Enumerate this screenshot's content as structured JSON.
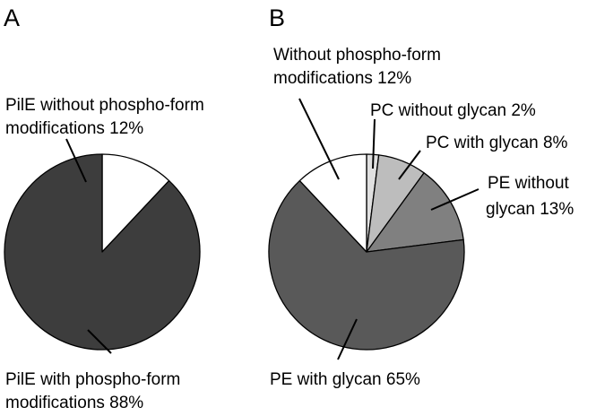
{
  "chart_data": [
    {
      "type": "pie",
      "panel_label": "A",
      "slices": [
        {
          "label_lines": [
            "PilE without phospho-form",
            "modifications 12%"
          ],
          "value": 12,
          "color": "#ffffff"
        },
        {
          "label_lines": [
            "PilE with phospho-form",
            "modifications 88%"
          ],
          "value": 88,
          "color": "#3d3d3d"
        }
      ]
    },
    {
      "type": "pie",
      "panel_label": "B",
      "slices": [
        {
          "label_lines": [
            "PC without glycan 2%"
          ],
          "value": 2,
          "color": "#e0e0e0"
        },
        {
          "label_lines": [
            "PC with glycan 8%"
          ],
          "value": 8,
          "color": "#bdbdbd"
        },
        {
          "label_lines": [
            "PE without",
            "glycan 13%"
          ],
          "value": 13,
          "color": "#808080"
        },
        {
          "label_lines": [
            "PE with glycan 65%"
          ],
          "value": 65,
          "color": "#595959"
        },
        {
          "label_lines": [
            "Without phospho-form",
            "modifications 12%"
          ],
          "value": 12,
          "color": "#ffffff"
        }
      ]
    }
  ]
}
